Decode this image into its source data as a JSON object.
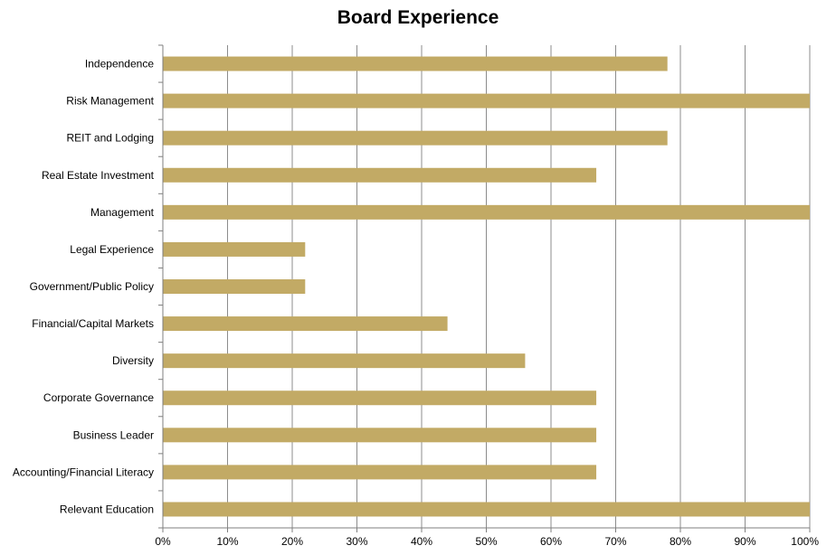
{
  "chart_data": {
    "type": "bar",
    "orientation": "horizontal",
    "title": "Board Experience",
    "xlabel": "",
    "ylabel": "",
    "xlim": [
      0,
      100
    ],
    "grid": "vertical",
    "legend": "none",
    "bar_color": "#C2AA65",
    "categories": [
      "Independence",
      "Risk Management",
      "REIT and Lodging",
      "Real Estate Investment",
      "Management",
      "Legal Experience",
      "Government/Public Policy",
      "Financial/Capital Markets",
      "Diversity",
      "Corporate Governance",
      "Business Leader",
      "Accounting/Financial Literacy",
      "Relevant Education"
    ],
    "values": [
      78,
      100,
      78,
      67,
      100,
      22,
      22,
      44,
      56,
      67,
      67,
      67,
      100
    ],
    "ticks": [
      0,
      10,
      20,
      30,
      40,
      50,
      60,
      70,
      80,
      90,
      100
    ],
    "tick_labels": [
      "0%",
      "10%",
      "20%",
      "30%",
      "40%",
      "50%",
      "60%",
      "70%",
      "80%",
      "90%",
      "100%"
    ]
  }
}
